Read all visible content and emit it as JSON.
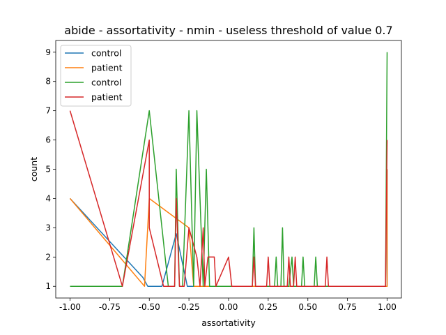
{
  "chart_data": {
    "type": "line",
    "title": "abide - assortativity - nmin - useless threshold of value 0.7",
    "xlabel": "assortativity",
    "ylabel": "count",
    "xlim": [
      -1.09,
      1.09
    ],
    "ylim": [
      0.6,
      9.4
    ],
    "xticks": [
      "-1.00",
      "-0.75",
      "-0.50",
      "-0.25",
      "0.00",
      "0.25",
      "0.50",
      "0.75",
      "1.00"
    ],
    "yticks": [
      "1",
      "2",
      "3",
      "4",
      "5",
      "6",
      "7",
      "8",
      "9"
    ],
    "grid": false,
    "legend_position": "top-left",
    "series": [
      {
        "name": "control",
        "color": "#1f77b4",
        "points": [
          [
            -1.0,
            4
          ],
          [
            -0.54,
            1.3
          ],
          [
            -0.51,
            1
          ],
          [
            -0.47,
            1
          ],
          [
            -0.42,
            1
          ],
          [
            -0.33,
            2.8
          ],
          [
            -0.26,
            1
          ],
          [
            -0.2,
            1
          ],
          [
            1.0,
            1
          ],
          [
            1.0,
            5
          ]
        ]
      },
      {
        "name": "patient",
        "color": "#ff7f0e",
        "points": [
          [
            -1.0,
            4
          ],
          [
            -0.53,
            1
          ],
          [
            -0.5,
            4
          ],
          [
            -0.25,
            3
          ],
          [
            -0.22,
            1
          ],
          [
            -0.18,
            1
          ],
          [
            -0.16,
            1
          ],
          [
            1.0,
            1
          ],
          [
            1.0,
            5
          ]
        ]
      },
      {
        "name": "control",
        "color": "#2ca02c",
        "points": [
          [
            -1.0,
            1
          ],
          [
            -0.67,
            1
          ],
          [
            -0.5,
            7
          ],
          [
            -0.38,
            1
          ],
          [
            -0.34,
            1
          ],
          [
            -0.33,
            5
          ],
          [
            -0.31,
            1
          ],
          [
            -0.29,
            1
          ],
          [
            -0.25,
            7
          ],
          [
            -0.22,
            1
          ],
          [
            -0.2,
            7
          ],
          [
            -0.18,
            4
          ],
          [
            -0.16,
            1
          ],
          [
            -0.14,
            5
          ],
          [
            -0.12,
            1
          ],
          [
            0.0,
            1
          ],
          [
            0.15,
            1
          ],
          [
            0.16,
            3
          ],
          [
            0.17,
            1
          ],
          [
            0.29,
            1
          ],
          [
            0.3,
            2
          ],
          [
            0.31,
            1
          ],
          [
            0.33,
            1
          ],
          [
            0.34,
            3
          ],
          [
            0.35,
            1
          ],
          [
            0.38,
            1
          ],
          [
            0.4,
            2
          ],
          [
            0.41,
            1
          ],
          [
            0.46,
            1
          ],
          [
            0.47,
            2
          ],
          [
            0.48,
            1
          ],
          [
            0.54,
            1
          ],
          [
            0.55,
            2
          ],
          [
            0.56,
            1
          ],
          [
            0.99,
            1
          ],
          [
            1.0,
            9
          ]
        ]
      },
      {
        "name": "patient",
        "color": "#d62728",
        "points": [
          [
            -1.0,
            7
          ],
          [
            -0.67,
            1
          ],
          [
            -0.5,
            6
          ],
          [
            -0.5,
            3
          ],
          [
            -0.41,
            1
          ],
          [
            -0.34,
            1
          ],
          [
            -0.33,
            4
          ],
          [
            -0.31,
            1
          ],
          [
            -0.28,
            1
          ],
          [
            -0.25,
            3
          ],
          [
            -0.2,
            2
          ],
          [
            -0.18,
            1
          ],
          [
            -0.16,
            3
          ],
          [
            -0.15,
            1
          ],
          [
            -0.13,
            2
          ],
          [
            -0.11,
            2
          ],
          [
            -0.09,
            2
          ],
          [
            -0.08,
            1
          ],
          [
            0.0,
            2
          ],
          [
            0.02,
            1
          ],
          [
            0.15,
            1
          ],
          [
            0.16,
            2
          ],
          [
            0.17,
            1
          ],
          [
            0.24,
            1
          ],
          [
            0.25,
            2
          ],
          [
            0.26,
            1
          ],
          [
            0.37,
            1
          ],
          [
            0.38,
            2
          ],
          [
            0.39,
            1
          ],
          [
            0.41,
            1
          ],
          [
            0.42,
            2
          ],
          [
            0.43,
            1
          ],
          [
            0.61,
            1
          ],
          [
            0.62,
            2
          ],
          [
            0.63,
            1
          ],
          [
            0.99,
            1
          ],
          [
            1.0,
            6
          ]
        ]
      }
    ]
  }
}
